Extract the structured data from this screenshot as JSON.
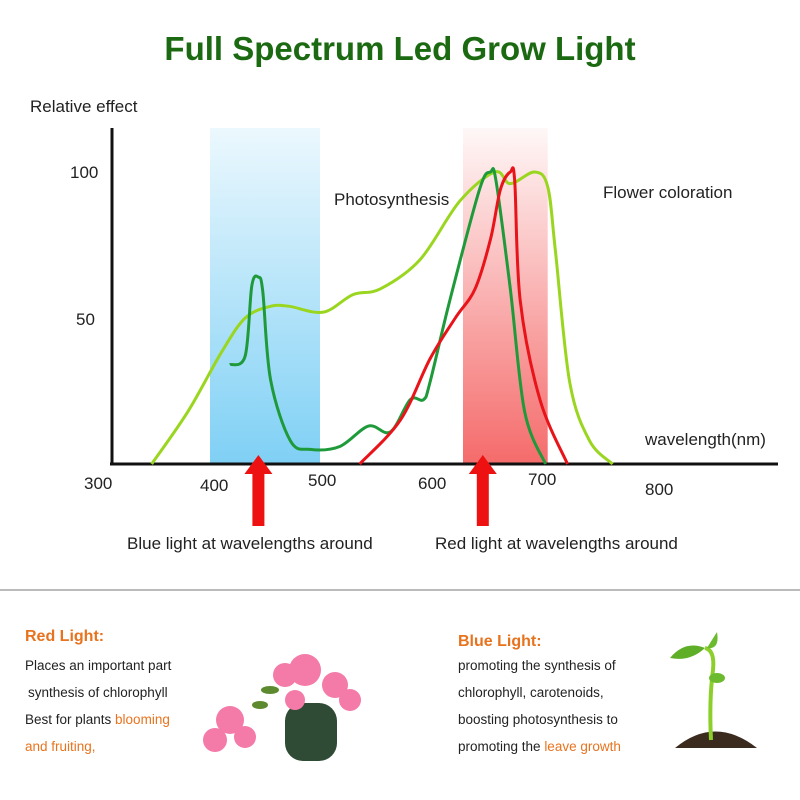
{
  "title": "Full Spectrum Led Grow Light",
  "chart_data": {
    "type": "line",
    "ylabel": "Relative effect",
    "xlabel": "wavelength(nm)",
    "x_ticks": [
      "300",
      "400",
      "500",
      "600",
      "700",
      "800"
    ],
    "y_ticks": [
      "50",
      "100"
    ],
    "xlim": [
      300,
      800
    ],
    "ylim": [
      0,
      100
    ],
    "grid": false,
    "bands": [
      {
        "range": [
          400,
          500
        ],
        "color": "#7fd0f5"
      },
      {
        "range": [
          630,
          707
        ],
        "color": "#f56b6b"
      }
    ],
    "arrows_nm": [
      444,
      648
    ],
    "series": [
      {
        "name": "Photosynthesis",
        "color": "#9ad61f",
        "points": [
          [
            347,
            0
          ],
          [
            380,
            18
          ],
          [
            410,
            38
          ],
          [
            432,
            50
          ],
          [
            455,
            54
          ],
          [
            472,
            54
          ],
          [
            503,
            52
          ],
          [
            530,
            58
          ],
          [
            555,
            60
          ],
          [
            591,
            70
          ],
          [
            627,
            90
          ],
          [
            659,
            100
          ],
          [
            673,
            96
          ],
          [
            695,
            100
          ],
          [
            707,
            95
          ],
          [
            714,
            73
          ],
          [
            727,
            28
          ],
          [
            745,
            8
          ],
          [
            766,
            0
          ]
        ]
      },
      {
        "color": "#1f9a3a",
        "points": [
          [
            418,
            34
          ],
          [
            432,
            37
          ],
          [
            438,
            61
          ],
          [
            444,
            64
          ],
          [
            448,
            59
          ],
          [
            455,
            29
          ],
          [
            473,
            8
          ],
          [
            491,
            5
          ],
          [
            518,
            6
          ],
          [
            544,
            13
          ],
          [
            564,
            11
          ],
          [
            582,
            22
          ],
          [
            594,
            22
          ],
          [
            600,
            28
          ],
          [
            618,
            56
          ],
          [
            645,
            94
          ],
          [
            655,
            100
          ],
          [
            660,
            97
          ],
          [
            673,
            60
          ],
          [
            686,
            18
          ],
          [
            705,
            0
          ]
        ]
      },
      {
        "name": "Flower coloration",
        "color": "#e8141a",
        "points": [
          [
            536,
            0
          ],
          [
            573,
            15
          ],
          [
            600,
            36
          ],
          [
            623,
            50
          ],
          [
            641,
            60
          ],
          [
            655,
            77
          ],
          [
            664,
            94
          ],
          [
            673,
            100
          ],
          [
            677,
            97
          ],
          [
            682,
            56
          ],
          [
            700,
            22
          ],
          [
            725,
            0
          ]
        ]
      }
    ]
  },
  "captions": {
    "blue": "Blue light at wavelengths around",
    "red": "Red light at wavelengths around"
  },
  "red_light": {
    "heading": "Red Light:",
    "line1": "Places an important part",
    "line2": "synthesis of chlorophyll",
    "line3_plain": "Best for plants ",
    "line3_highlight": "blooming",
    "line4_highlight": "and fruiting,"
  },
  "blue_light": {
    "heading": "Blue Light:",
    "line1": "promoting the synthesis of",
    "line2": "chlorophyll, carotenoids,",
    "line3": "boosting photosynthesis to",
    "line4_plain": "promoting the ",
    "line4_highlight": "leave growth"
  },
  "colors": {
    "title": "#1b6a12",
    "accent": "#e8731e",
    "arrow": "#ee1111"
  }
}
